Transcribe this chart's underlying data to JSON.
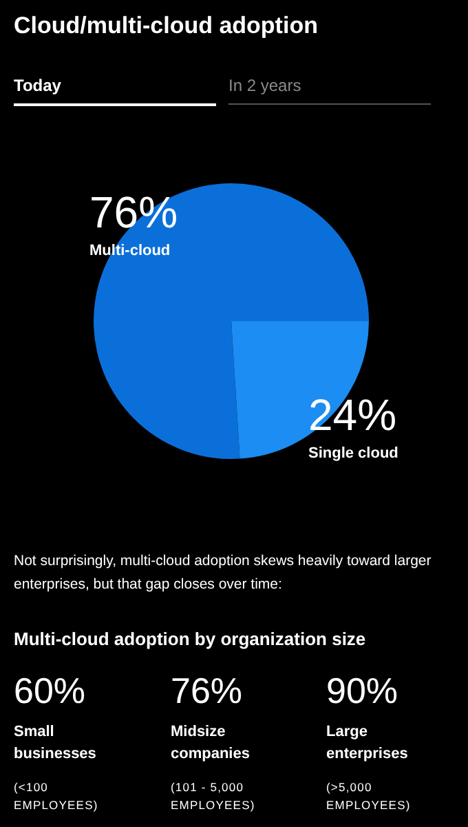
{
  "chart_data": [
    {
      "type": "pie",
      "title": "Cloud/multi-cloud adoption",
      "categories": [
        "Multi-cloud",
        "Single cloud"
      ],
      "values": [
        76,
        24
      ],
      "colors": [
        "#0b6fd9",
        "#1c8df2"
      ],
      "value_labels": [
        "76%",
        "24%"
      ],
      "annotations": [
        "Today",
        "In 2 years",
        "Not surprisingly, multi-cloud adoption skews heavily toward larger enterprises, but that gap closes over time:"
      ]
    },
    {
      "type": "other",
      "title": "Multi-cloud adoption by organization size",
      "categories": [
        "Small businesses",
        "Midsize companies",
        "Large enterprises"
      ],
      "value_labels": [
        "60%",
        "76%",
        "90%"
      ],
      "annotations": [
        "(<100 EMPLOYEES)",
        "(101 - 5,000 EMPLOYEES)",
        "(>5,000 EMPLOYEES)"
      ]
    }
  ]
}
